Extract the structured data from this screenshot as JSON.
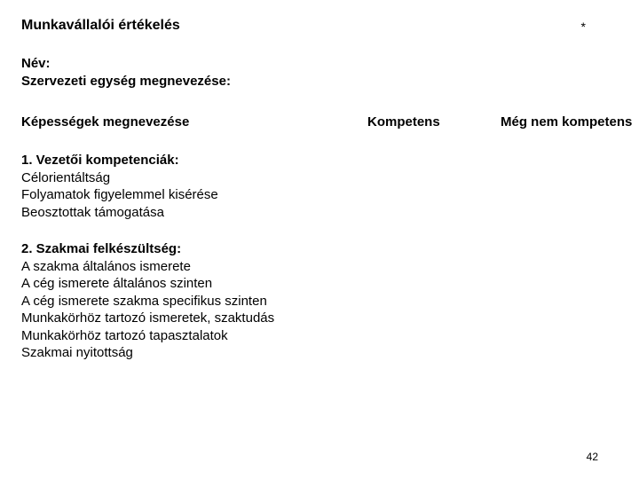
{
  "title": "Munkavállalói értékelés",
  "corner_mark": "*",
  "meta": {
    "name_label": "Név:",
    "unit_label": "Szervezeti egység megnevezése:"
  },
  "columns": {
    "col1": "Képességek megnevezése",
    "col2": "Kompetens",
    "col3": "Még nem kompetens"
  },
  "sections": [
    {
      "heading": "1. Vezetői kompetenciák:",
      "items": [
        "Célorientáltság",
        "Folyamatok figyelemmel kisérése",
        "Beosztottak támogatása"
      ]
    },
    {
      "heading": "2. Szakmai felkészültség:",
      "items": [
        "A szakma általános ismerete",
        "A cég ismerete általános szinten",
        "A cég ismerete szakma specifikus szinten",
        "Munkakörhöz tartozó ismeretek, szaktudás",
        "Munkakörhöz tartozó tapasztalatok",
        "Szakmai nyitottság"
      ]
    }
  ],
  "page_number": "42"
}
